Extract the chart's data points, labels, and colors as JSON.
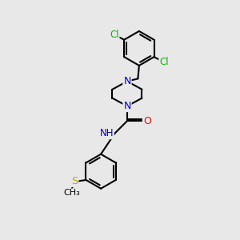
{
  "bg_color": "#e8e8e8",
  "atom_colors": {
    "C": "#000000",
    "N": "#0000cc",
    "O": "#ff0000",
    "Cl": "#00bb00",
    "S": "#bbaa00",
    "H": "#000000"
  },
  "bond_color": "#000000",
  "font_size": 8.5,
  "figsize": [
    3.0,
    3.0
  ],
  "dpi": 100
}
